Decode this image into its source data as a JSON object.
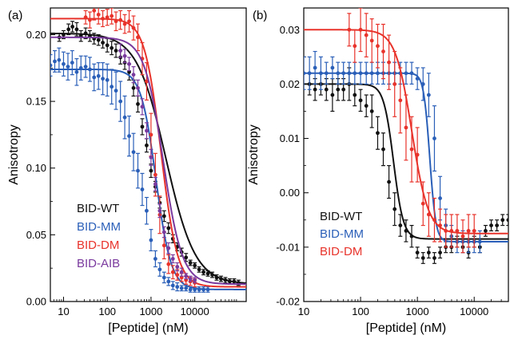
{
  "chart_data": [
    {
      "panel_label": "(a)",
      "type": "scatter",
      "xscale": "log",
      "xlabel": "[Peptide] (nM)",
      "ylabel": "Anisotropy",
      "xlim": [
        5,
        150000
      ],
      "ylim": [
        0.0,
        0.22
      ],
      "xticks": [
        "10",
        "100",
        "1000",
        "10000"
      ],
      "yticks": [
        "0.00",
        "0.05",
        "0.10",
        "0.15",
        "0.20"
      ],
      "legend_position": "bottom-left",
      "series": [
        {
          "name": "BID-WT",
          "color": "#111111",
          "fit": {
            "top": 0.201,
            "bottom": 0.013,
            "ec50": 2200,
            "hill": 1.3
          },
          "x": [
            8,
            10,
            13,
            16,
            20,
            25,
            32,
            40,
            50,
            63,
            79,
            100,
            126,
            158,
            200,
            251,
            316,
            398,
            501,
            631,
            794,
            1000,
            1259,
            1585,
            1995,
            2512,
            3162,
            3981,
            5012,
            6310,
            7943,
            10000,
            12589,
            15849,
            19953,
            25119,
            31623,
            39811,
            50119,
            63096,
            79433,
            100000
          ],
          "y": [
            0.198,
            0.2,
            0.204,
            0.206,
            0.204,
            0.199,
            0.201,
            0.199,
            0.197,
            0.196,
            0.194,
            0.192,
            0.19,
            0.188,
            0.183,
            0.179,
            0.172,
            0.16,
            0.148,
            0.131,
            0.117,
            0.098,
            0.086,
            0.074,
            0.064,
            0.055,
            0.047,
            0.041,
            0.037,
            0.033,
            0.029,
            0.027,
            0.024,
            0.022,
            0.021,
            0.02,
            0.018,
            0.017,
            0.016,
            0.015,
            0.015,
            0.014
          ],
          "err": [
            0.003,
            0.003,
            0.004,
            0.004,
            0.005,
            0.004,
            0.004,
            0.004,
            0.004,
            0.004,
            0.004,
            0.005,
            0.005,
            0.005,
            0.005,
            0.005,
            0.006,
            0.006,
            0.006,
            0.006,
            0.005,
            0.005,
            0.004,
            0.004,
            0.004,
            0.004,
            0.003,
            0.003,
            0.003,
            0.003,
            0.002,
            0.002,
            0.002,
            0.002,
            0.002,
            0.002,
            0.002,
            0.002,
            0.002,
            0.002,
            0.002,
            0.002
          ]
        },
        {
          "name": "BID-MM",
          "color": "#2a5fb8",
          "fit": {
            "top": 0.174,
            "bottom": 0.009,
            "ec50": 1300,
            "hill": 2.5
          },
          "x": [
            5,
            6.3,
            7.9,
            10,
            12.6,
            15.8,
            20,
            25,
            32,
            40,
            50,
            63,
            79,
            100,
            126,
            158,
            200,
            251,
            316,
            398,
            501,
            631,
            794,
            1000,
            1259,
            1585,
            1995,
            2512,
            3162,
            3981,
            5012,
            6310,
            7943,
            10000,
            12589,
            15849,
            19953
          ],
          "y": [
            0.177,
            0.18,
            0.181,
            0.178,
            0.176,
            0.179,
            0.172,
            0.175,
            0.176,
            0.174,
            0.168,
            0.169,
            0.167,
            0.166,
            0.161,
            0.158,
            0.15,
            0.138,
            0.124,
            0.112,
            0.098,
            0.084,
            0.068,
            0.046,
            0.032,
            0.024,
            0.018,
            0.015,
            0.012,
            0.011,
            0.01,
            0.01,
            0.009,
            0.009,
            0.009,
            0.009,
            0.009
          ],
          "err": [
            0.008,
            0.008,
            0.009,
            0.009,
            0.01,
            0.009,
            0.01,
            0.009,
            0.008,
            0.009,
            0.01,
            0.01,
            0.012,
            0.012,
            0.013,
            0.014,
            0.015,
            0.016,
            0.015,
            0.014,
            0.013,
            0.012,
            0.01,
            0.008,
            0.006,
            0.005,
            0.004,
            0.003,
            0.003,
            0.003,
            0.002,
            0.002,
            0.002,
            0.002,
            0.002,
            0.002,
            0.002
          ]
        },
        {
          "name": "BID-DM",
          "color": "#e8332b",
          "fit": {
            "top": 0.212,
            "bottom": 0.011,
            "ec50": 1700,
            "hill": 2.3
          },
          "x": [
            32,
            40,
            50,
            63,
            79,
            100,
            126,
            158,
            200,
            251,
            316,
            398,
            501,
            631,
            794,
            1000,
            1259,
            1585,
            1995,
            2512,
            3162,
            3981,
            5012,
            6310,
            7943,
            10000
          ],
          "y": [
            0.213,
            0.211,
            0.218,
            0.215,
            0.212,
            0.213,
            0.214,
            0.21,
            0.211,
            0.208,
            0.21,
            0.205,
            0.198,
            0.182,
            0.165,
            0.125,
            0.095,
            0.065,
            0.042,
            0.028,
            0.022,
            0.02,
            0.018,
            0.016,
            0.015,
            0.014
          ],
          "err": [
            0.005,
            0.006,
            0.007,
            0.007,
            0.006,
            0.006,
            0.006,
            0.007,
            0.007,
            0.007,
            0.008,
            0.009,
            0.01,
            0.012,
            0.014,
            0.016,
            0.016,
            0.014,
            0.01,
            0.007,
            0.005,
            0.004,
            0.003,
            0.003,
            0.003,
            0.003
          ]
        },
        {
          "name": "BID-AIB",
          "color": "#7a3a9e",
          "fit": {
            "top": 0.198,
            "bottom": 0.013,
            "ec50": 1900,
            "hill": 2.0
          },
          "x": [
            200,
            251,
            316,
            398,
            501,
            631,
            794,
            1000,
            1259,
            1585,
            1995,
            2512,
            3162,
            3981,
            5012,
            6310,
            7943,
            10000
          ],
          "y": [
            0.188,
            0.184,
            0.178,
            0.17,
            0.16,
            0.146,
            0.128,
            0.108,
            0.088,
            0.068,
            0.052,
            0.04,
            0.032,
            0.026,
            0.022,
            0.019,
            0.017,
            0.016
          ],
          "err": [
            0.005,
            0.005,
            0.005,
            0.006,
            0.006,
            0.006,
            0.006,
            0.006,
            0.005,
            0.005,
            0.004,
            0.004,
            0.003,
            0.003,
            0.003,
            0.002,
            0.002,
            0.002
          ]
        }
      ]
    },
    {
      "panel_label": "(b)",
      "type": "scatter",
      "xscale": "log",
      "xlabel": "[Peptide] (nM)",
      "ylabel": "Anisotropy",
      "xlim": [
        10,
        40000
      ],
      "ylim": [
        -0.02,
        0.034
      ],
      "xticks": [
        "10",
        "100",
        "1000",
        "10000"
      ],
      "yticks": [
        "-0.02",
        "-0.01",
        "0.00",
        "0.01",
        "0.02",
        "0.03"
      ],
      "legend_position": "bottom-left",
      "series": [
        {
          "name": "BID-WT",
          "color": "#111111",
          "fit": {
            "top": 0.02,
            "bottom": -0.0085,
            "ec50": 380,
            "hill": 5
          },
          "x": [
            12.6,
            15.8,
            20,
            25,
            32,
            40,
            50,
            63,
            79,
            100,
            126,
            158,
            200,
            251,
            316,
            398,
            501,
            631,
            794,
            1000,
            1259,
            1585,
            1995,
            2512,
            3162,
            3981,
            5012,
            6310,
            7943,
            10000,
            12589,
            15849,
            19953,
            25119,
            31623,
            39811
          ],
          "y": [
            0.02,
            0.019,
            0.02,
            0.019,
            0.018,
            0.019,
            0.019,
            0.02,
            0.018,
            0.017,
            0.016,
            0.015,
            0.011,
            0.008,
            0.002,
            -0.003,
            -0.006,
            -0.007,
            -0.008,
            -0.011,
            -0.012,
            -0.011,
            -0.012,
            -0.011,
            -0.01,
            -0.01,
            -0.009,
            -0.01,
            -0.011,
            -0.009,
            -0.01,
            -0.007,
            -0.006,
            -0.006,
            -0.005,
            -0.005
          ],
          "err": [
            0.002,
            0.002,
            0.002,
            0.002,
            0.003,
            0.002,
            0.002,
            0.003,
            0.002,
            0.002,
            0.002,
            0.003,
            0.003,
            0.003,
            0.003,
            0.003,
            0.002,
            0.002,
            0.002,
            0.001,
            0.001,
            0.001,
            0.001,
            0.001,
            0.001,
            0.001,
            0.001,
            0.001,
            0.001,
            0.001,
            0.001,
            0.001,
            0.001,
            0.001,
            0.001,
            0.001
          ]
        },
        {
          "name": "BID-MM",
          "color": "#2a5fb8",
          "fit": {
            "top": 0.022,
            "bottom": -0.009,
            "ec50": 1650,
            "hill": 8
          },
          "x": [
            10,
            12.6,
            15.8,
            20,
            25,
            32,
            40,
            50,
            63,
            79,
            100,
            126,
            158,
            200,
            251,
            316,
            398,
            501,
            631,
            794,
            1000,
            1259,
            1585,
            1995,
            2512,
            3162,
            3981,
            5012,
            6310,
            7943,
            10000,
            12589
          ],
          "y": [
            0.022,
            0.022,
            0.023,
            0.022,
            0.022,
            0.023,
            0.022,
            0.022,
            0.022,
            0.022,
            0.022,
            0.022,
            0.022,
            0.022,
            0.022,
            0.022,
            0.022,
            0.022,
            0.022,
            0.022,
            0.021,
            0.02,
            0.018,
            0.01,
            -0.001,
            -0.006,
            -0.008,
            -0.009,
            -0.009,
            -0.009,
            -0.009,
            -0.009
          ],
          "err": [
            0.003,
            0.003,
            0.003,
            0.003,
            0.002,
            0.002,
            0.002,
            0.002,
            0.002,
            0.002,
            0.002,
            0.002,
            0.002,
            0.002,
            0.002,
            0.002,
            0.002,
            0.002,
            0.002,
            0.002,
            0.002,
            0.003,
            0.004,
            0.006,
            0.004,
            0.003,
            0.002,
            0.002,
            0.002,
            0.002,
            0.002,
            0.002
          ]
        },
        {
          "name": "BID-DM",
          "color": "#e8332b",
          "fit": {
            "top": 0.03,
            "bottom": -0.0075,
            "ec50": 800,
            "hill": 3
          },
          "x": [
            63,
            79,
            100,
            126,
            158,
            200,
            251,
            316,
            398,
            501,
            631,
            794,
            1000,
            1259,
            1585,
            1995,
            2512,
            3162,
            3981,
            5012,
            6310,
            7943,
            10000
          ],
          "y": [
            0.03,
            0.027,
            0.03,
            0.029,
            0.028,
            0.027,
            0.026,
            0.024,
            0.02,
            0.017,
            0.012,
            0.008,
            0.007,
            -0.002,
            -0.004,
            -0.005,
            -0.006,
            -0.007,
            -0.007,
            -0.007,
            -0.008,
            -0.007,
            -0.007
          ],
          "err": [
            0.003,
            0.003,
            0.004,
            0.004,
            0.004,
            0.004,
            0.005,
            0.005,
            0.006,
            0.006,
            0.006,
            0.006,
            0.005,
            0.004,
            0.004,
            0.004,
            0.003,
            0.003,
            0.003,
            0.003,
            0.003,
            0.003,
            0.003
          ]
        }
      ]
    }
  ]
}
